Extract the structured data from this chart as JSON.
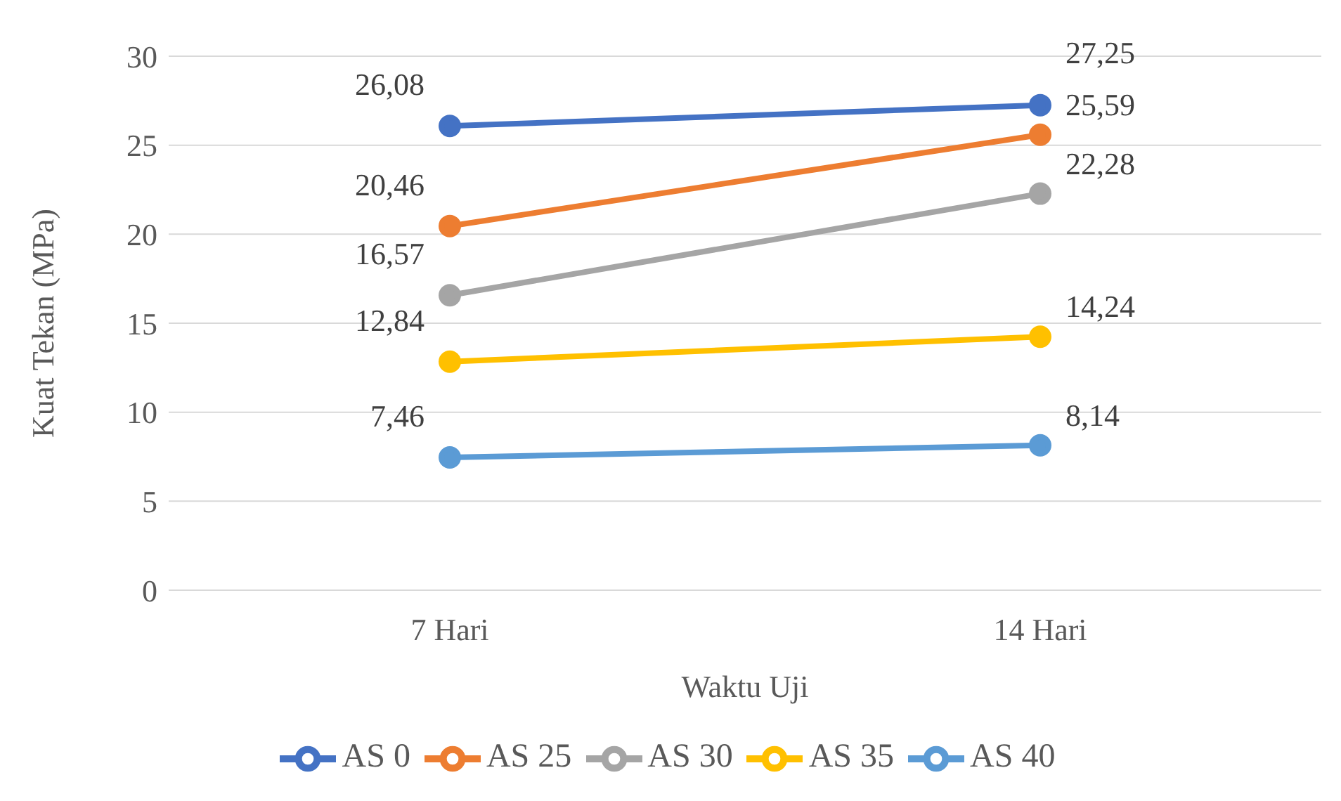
{
  "chart_data": {
    "type": "line",
    "xlabel": "Waktu Uji",
    "ylabel": "Kuat Tekan (MPa)",
    "categories": [
      "7 Hari",
      "14 Hari"
    ],
    "series": [
      {
        "name": "AS 0",
        "color": "#4472c4",
        "values": [
          26.08,
          27.25
        ],
        "value_labels": [
          "26,08",
          "27,25"
        ]
      },
      {
        "name": "AS 25",
        "color": "#ed7d31",
        "values": [
          20.46,
          25.59
        ],
        "value_labels": [
          "20,46",
          "25,59"
        ]
      },
      {
        "name": "AS 30",
        "color": "#a5a5a5",
        "values": [
          16.57,
          22.28
        ],
        "value_labels": [
          "16,57",
          "22,28"
        ]
      },
      {
        "name": "AS 35",
        "color": "#ffc000",
        "values": [
          12.84,
          14.24
        ],
        "value_labels": [
          "12,84",
          "14,24"
        ]
      },
      {
        "name": "AS 40",
        "color": "#5b9bd5",
        "values": [
          7.46,
          8.14
        ],
        "value_labels": [
          "7,46",
          "8,14"
        ]
      }
    ],
    "ylim": [
      0,
      30
    ],
    "yticks": [
      0,
      5,
      10,
      15,
      20,
      25,
      30
    ],
    "grid": "y",
    "legend": "bottom",
    "marker": "circle",
    "line_style": "solid"
  }
}
